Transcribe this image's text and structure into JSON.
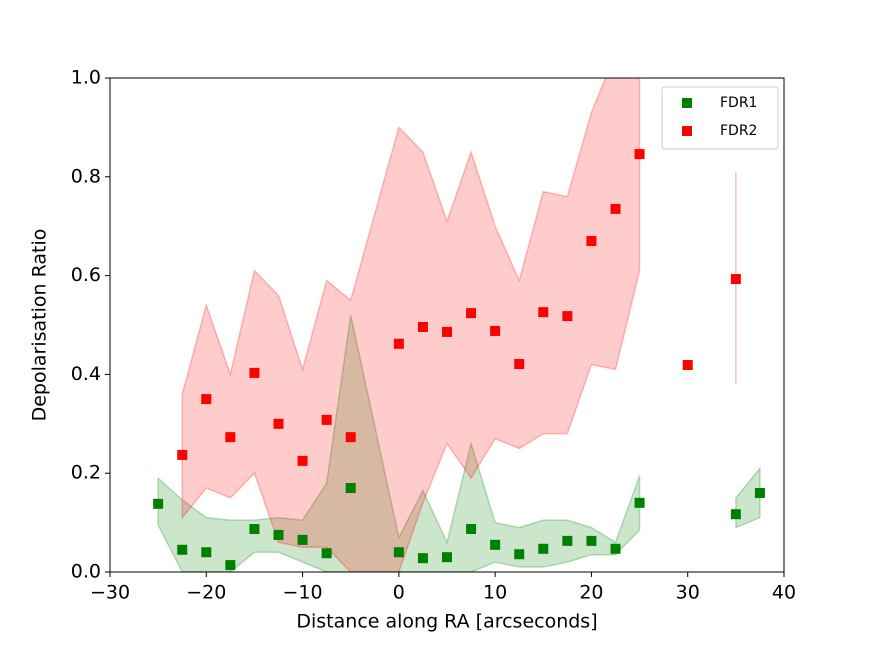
{
  "chart_data": {
    "type": "scatter",
    "x_label": "Distance along RA [arcseconds]",
    "y_label": "Depolarisation Ratio",
    "x": [
      -25,
      -22.5,
      -20,
      -17.5,
      -15,
      -12.5,
      -10,
      -7.5,
      -5,
      0,
      2.5,
      5,
      7.5,
      10,
      12.5,
      15,
      17.5,
      20,
      22.5,
      25,
      30,
      35,
      37.5
    ],
    "series": [
      {
        "name": "FDR1",
        "color": "#008000",
        "values": [
          0.138,
          0.045,
          0.04,
          0.014,
          0.087,
          0.075,
          0.065,
          0.038,
          0.17,
          0.04,
          0.028,
          0.03,
          0.087,
          0.055,
          0.036,
          0.047,
          0.063,
          0.063,
          0.047,
          0.14,
          null,
          0.117,
          0.16
        ],
        "lower": [
          0.095,
          0.0,
          0.0,
          0.0,
          0.04,
          0.04,
          0.02,
          0.0,
          0.0,
          0.0,
          0.0,
          0.0,
          0.0,
          0.02,
          0.01,
          0.01,
          0.02,
          0.035,
          0.035,
          0.085,
          null,
          0.09,
          0.11
        ],
        "upper": [
          0.19,
          0.146,
          0.11,
          0.105,
          0.105,
          0.11,
          0.105,
          0.18,
          0.52,
          0.07,
          0.165,
          0.06,
          0.26,
          0.1,
          0.09,
          0.105,
          0.105,
          0.09,
          0.06,
          0.195,
          null,
          0.15,
          0.21
        ]
      },
      {
        "name": "FDR2",
        "color": "#ff0000",
        "values": [
          null,
          0.237,
          0.35,
          0.273,
          0.403,
          0.3,
          0.225,
          0.308,
          0.273,
          0.462,
          0.496,
          0.486,
          0.524,
          0.488,
          0.421,
          0.526,
          0.518,
          0.67,
          0.735,
          0.846,
          0.419,
          0.593,
          null
        ],
        "lower": [
          null,
          0.11,
          0.17,
          0.15,
          0.2,
          0.06,
          0.05,
          0.05,
          0.0,
          0.0,
          0.14,
          0.26,
          0.19,
          0.27,
          0.25,
          0.28,
          0.28,
          0.42,
          0.41,
          0.61,
          null,
          0.38,
          null
        ],
        "upper": [
          null,
          0.36,
          0.54,
          0.4,
          0.61,
          0.56,
          0.41,
          0.59,
          0.55,
          0.9,
          0.85,
          0.71,
          0.85,
          0.7,
          0.59,
          0.77,
          0.76,
          0.93,
          1.05,
          1.1,
          null,
          0.81,
          null
        ]
      }
    ],
    "xlim": [
      -30,
      40
    ],
    "ylim": [
      0,
      1
    ],
    "xticks": [
      {
        "value": -30,
        "label": "−30"
      },
      {
        "value": -20,
        "label": "−20"
      },
      {
        "value": -10,
        "label": "−10"
      },
      0,
      10,
      20,
      30,
      40
    ],
    "yticks": [
      {
        "value": 0,
        "label": "0.0"
      },
      0.2,
      0.4,
      0.6,
      0.8,
      {
        "value": 1,
        "label": "1.0"
      }
    ],
    "legend": "upper right"
  }
}
